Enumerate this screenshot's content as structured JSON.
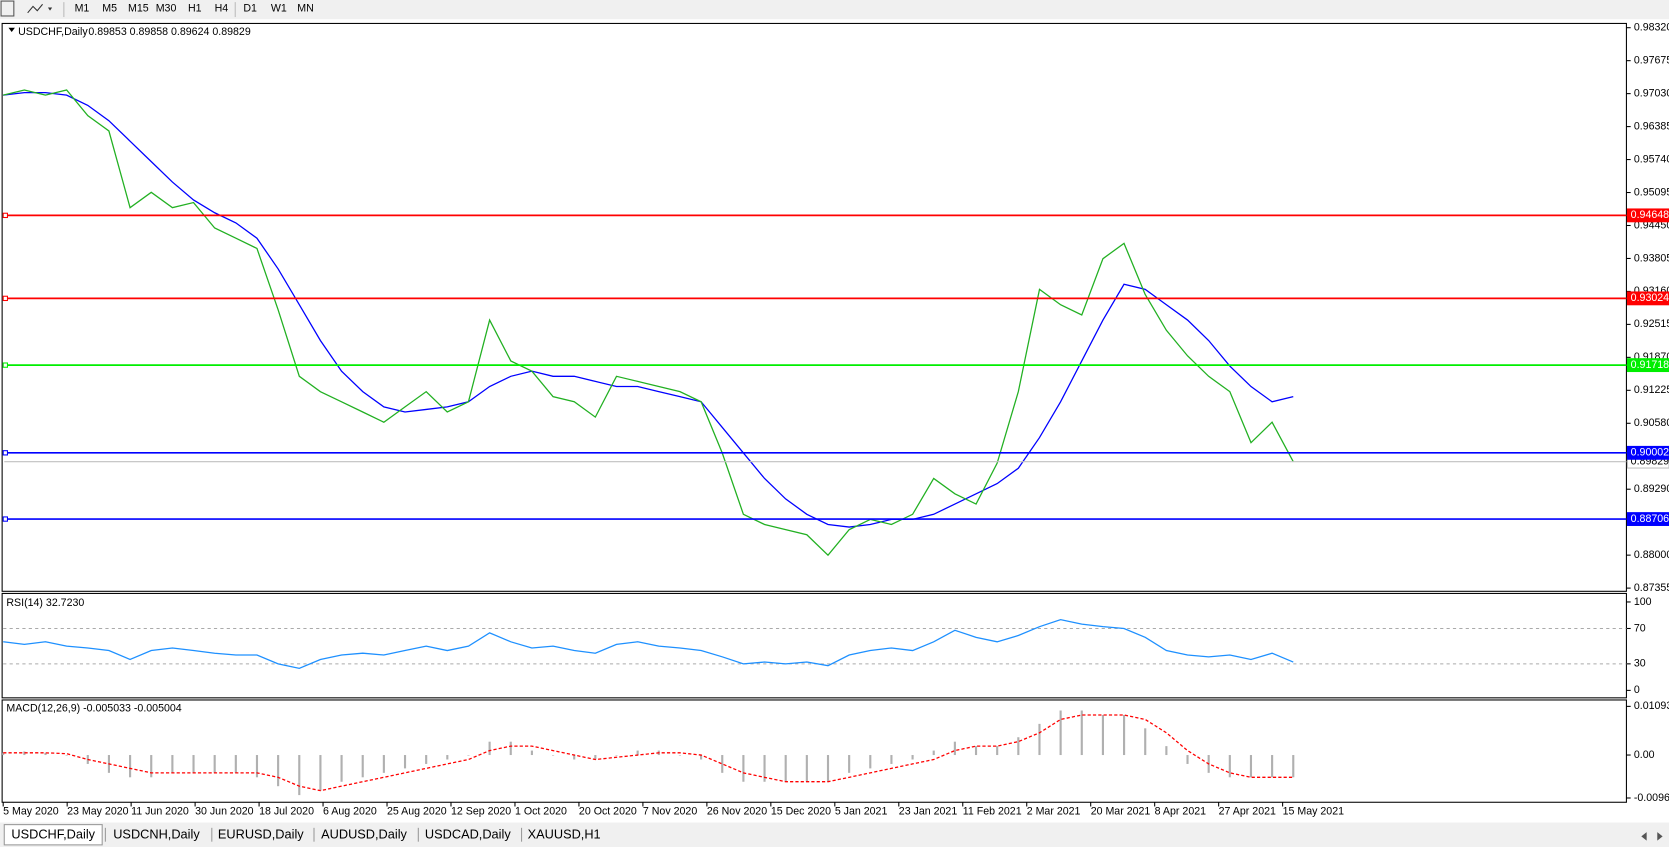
{
  "toolbar": {
    "timeframes": [
      "M1",
      "M5",
      "M15",
      "M30",
      "H1",
      "H4",
      "D1",
      "W1",
      "MN"
    ]
  },
  "chart": {
    "symbol": "USDCHF,Daily",
    "ohlc": "0.89853 0.89858 0.89624 0.89829",
    "ylim": [
      0.87355,
      0.9832
    ],
    "yticks": [
      {
        "value": 0.9832,
        "label": "0.98320"
      },
      {
        "value": 0.97675,
        "label": "0.97675"
      },
      {
        "value": 0.9703,
        "label": "0.97030"
      },
      {
        "value": 0.96385,
        "label": "0.96385"
      },
      {
        "value": 0.9574,
        "label": "0.95740"
      },
      {
        "value": 0.95095,
        "label": "0.95095"
      },
      {
        "value": 0.9445,
        "label": "0.94450"
      },
      {
        "value": 0.93805,
        "label": "0.93805"
      },
      {
        "value": 0.9316,
        "label": "0.93160"
      },
      {
        "value": 0.92515,
        "label": "0.92515"
      },
      {
        "value": 0.9187,
        "label": "0.91870"
      },
      {
        "value": 0.91225,
        "label": "0.91225"
      },
      {
        "value": 0.9058,
        "label": "0.90580"
      },
      {
        "value": 0.8929,
        "label": "0.89290"
      },
      {
        "value": 0.88,
        "label": "0.88000"
      },
      {
        "value": 0.87355,
        "label": "0.87355"
      }
    ],
    "levels": [
      {
        "value": 0.94648,
        "label": "0.94648",
        "color": "#ff0000"
      },
      {
        "value": 0.93024,
        "label": "0.93024",
        "color": "#ff0000"
      },
      {
        "value": 0.91718,
        "label": "0.91718",
        "color": "#00ee00"
      },
      {
        "value": 0.90002,
        "label": "0.90002",
        "color": "#0000ff"
      },
      {
        "value": 0.88706,
        "label": "0.88706",
        "color": "#0000ff"
      }
    ],
    "current": {
      "value": 0.89829,
      "label": "0.89829",
      "color": "#c0c0c0"
    },
    "dates": [
      "5 May 2020",
      "23 May 2020",
      "11 Jun 2020",
      "30 Jun 2020",
      "18 Jul 2020",
      "6 Aug 2020",
      "25 Aug 2020",
      "12 Sep 2020",
      "1 Oct 2020",
      "20 Oct 2020",
      "7 Nov 2020",
      "26 Nov 2020",
      "15 Dec 2020",
      "5 Jan 2021",
      "23 Jan 2021",
      "11 Feb 2021",
      "2 Mar 2021",
      "20 Mar 2021",
      "8 Apr 2021",
      "27 Apr 2021",
      "15 May 2021"
    ],
    "close": {
      "color": "#22b022",
      "values": [
        0.97,
        0.971,
        0.97,
        0.971,
        0.966,
        0.963,
        0.948,
        0.951,
        0.948,
        0.949,
        0.944,
        0.942,
        0.94,
        0.928,
        0.915,
        0.912,
        0.91,
        0.908,
        0.906,
        0.909,
        0.912,
        0.908,
        0.91,
        0.926,
        0.918,
        0.916,
        0.911,
        0.91,
        0.907,
        0.915,
        0.914,
        0.913,
        0.912,
        0.91,
        0.9,
        0.888,
        0.886,
        0.885,
        0.884,
        0.88,
        0.885,
        0.887,
        0.886,
        0.888,
        0.895,
        0.892,
        0.89,
        0.898,
        0.912,
        0.932,
        0.929,
        0.927,
        0.938,
        0.941,
        0.931,
        0.924,
        0.919,
        0.915,
        0.912,
        0.902,
        0.906,
        0.8983
      ]
    },
    "ma": {
      "color": "#0000ff",
      "values": [
        0.97,
        0.9705,
        0.9705,
        0.97,
        0.968,
        0.965,
        0.961,
        0.957,
        0.953,
        0.9495,
        0.947,
        0.945,
        0.942,
        0.936,
        0.929,
        0.922,
        0.916,
        0.912,
        0.909,
        0.908,
        0.9085,
        0.909,
        0.91,
        0.913,
        0.915,
        0.916,
        0.915,
        0.915,
        0.914,
        0.913,
        0.913,
        0.912,
        0.911,
        0.91,
        0.905,
        0.9,
        0.895,
        0.891,
        0.888,
        0.886,
        0.8855,
        0.886,
        0.887,
        0.887,
        0.888,
        0.89,
        0.892,
        0.894,
        0.897,
        0.903,
        0.91,
        0.918,
        0.926,
        0.933,
        0.932,
        0.929,
        0.926,
        0.922,
        0.917,
        0.913,
        0.91,
        0.911
      ]
    }
  },
  "rsi": {
    "title": "RSI(14) 32.7230",
    "ylim": [
      0,
      100
    ],
    "yticks": [
      100,
      70,
      30,
      0
    ],
    "levels": [
      70,
      30
    ],
    "color": "#1e90ff",
    "values": [
      55,
      52,
      55,
      50,
      48,
      45,
      35,
      45,
      48,
      45,
      42,
      40,
      40,
      30,
      25,
      35,
      40,
      42,
      40,
      45,
      50,
      45,
      50,
      65,
      55,
      48,
      50,
      45,
      42,
      52,
      55,
      50,
      48,
      45,
      38,
      30,
      32,
      30,
      32,
      28,
      40,
      45,
      48,
      45,
      55,
      68,
      60,
      55,
      62,
      72,
      80,
      75,
      72,
      70,
      60,
      45,
      40,
      38,
      40,
      35,
      42,
      32
    ]
  },
  "macd": {
    "title": "MACD(12,26,9) -0.005033 -0.005004",
    "ylim": [
      -0.00965,
      0.010933
    ],
    "yticks": [
      0.010933,
      {
        "value": 0,
        "label": "0.00"
      },
      -0.00965
    ],
    "histogram": {
      "color": "#b0b0b0",
      "values": [
        0.0005,
        0.0008,
        0.0005,
        0,
        -0.002,
        -0.004,
        -0.005,
        -0.005,
        -0.004,
        -0.004,
        -0.004,
        -0.004,
        -0.005,
        -0.007,
        -0.009,
        -0.008,
        -0.006,
        -0.005,
        -0.004,
        -0.003,
        -0.002,
        -0.001,
        0,
        0.003,
        0.003,
        0.001,
        0,
        -0.001,
        -0.001,
        0,
        0.001,
        0.001,
        0,
        -0.001,
        -0.004,
        -0.006,
        -0.006,
        -0.006,
        -0.006,
        -0.006,
        -0.004,
        -0.003,
        -0.002,
        -0.001,
        0.001,
        0.003,
        0.002,
        0.002,
        0.004,
        0.007,
        0.01,
        0.01,
        0.009,
        0.009,
        0.006,
        0.002,
        -0.002,
        -0.004,
        -0.005,
        -0.005,
        -0.005,
        -0.005
      ]
    },
    "signal": {
      "color": "#ff0000",
      "values": [
        0.0005,
        0.0005,
        0.0005,
        0.0003,
        -0.001,
        -0.002,
        -0.003,
        -0.004,
        -0.004,
        -0.004,
        -0.004,
        -0.004,
        -0.004,
        -0.005,
        -0.007,
        -0.008,
        -0.007,
        -0.006,
        -0.005,
        -0.004,
        -0.003,
        -0.002,
        -0.001,
        0.001,
        0.002,
        0.002,
        0.001,
        0,
        -0.001,
        -0.0005,
        0,
        0.0005,
        0.0005,
        0,
        -0.002,
        -0.004,
        -0.005,
        -0.006,
        -0.006,
        -0.006,
        -0.005,
        -0.004,
        -0.003,
        -0.002,
        -0.001,
        0.001,
        0.002,
        0.002,
        0.003,
        0.005,
        0.008,
        0.009,
        0.009,
        0.009,
        0.008,
        0.005,
        0.001,
        -0.002,
        -0.004,
        -0.005,
        -0.005,
        -0.005
      ]
    }
  },
  "tabs": [
    "USDCHF,Daily",
    "USDCNH,Daily",
    "EURUSD,Daily",
    "AUDUSD,Daily",
    "USDCAD,Daily",
    "XAUUSD,H1"
  ]
}
